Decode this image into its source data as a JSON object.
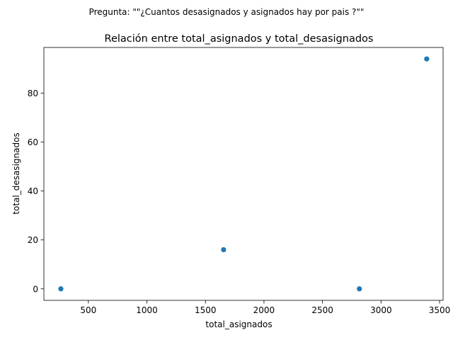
{
  "chart_data": {
    "type": "scatter",
    "suptitle": "Pregunta: \"\"¿Cuantos desasignados y asignados hay por pais ?\"\"",
    "title": "Relación entre total_asignados y total_desasignados",
    "xlabel": "total_asignados",
    "ylabel": "total_desasignados",
    "xlim": [
      120,
      3530
    ],
    "ylim": [
      -4.7,
      98.7
    ],
    "xticks": [
      500,
      1000,
      1500,
      2000,
      2500,
      3000,
      3500
    ],
    "yticks": [
      0,
      20,
      40,
      60,
      80
    ],
    "grid": false,
    "legend": "none",
    "point_color": "#1f77b4",
    "points": [
      {
        "x": 265,
        "y": 0
      },
      {
        "x": 1655,
        "y": 16
      },
      {
        "x": 2815,
        "y": 0
      },
      {
        "x": 3390,
        "y": 94
      }
    ]
  }
}
